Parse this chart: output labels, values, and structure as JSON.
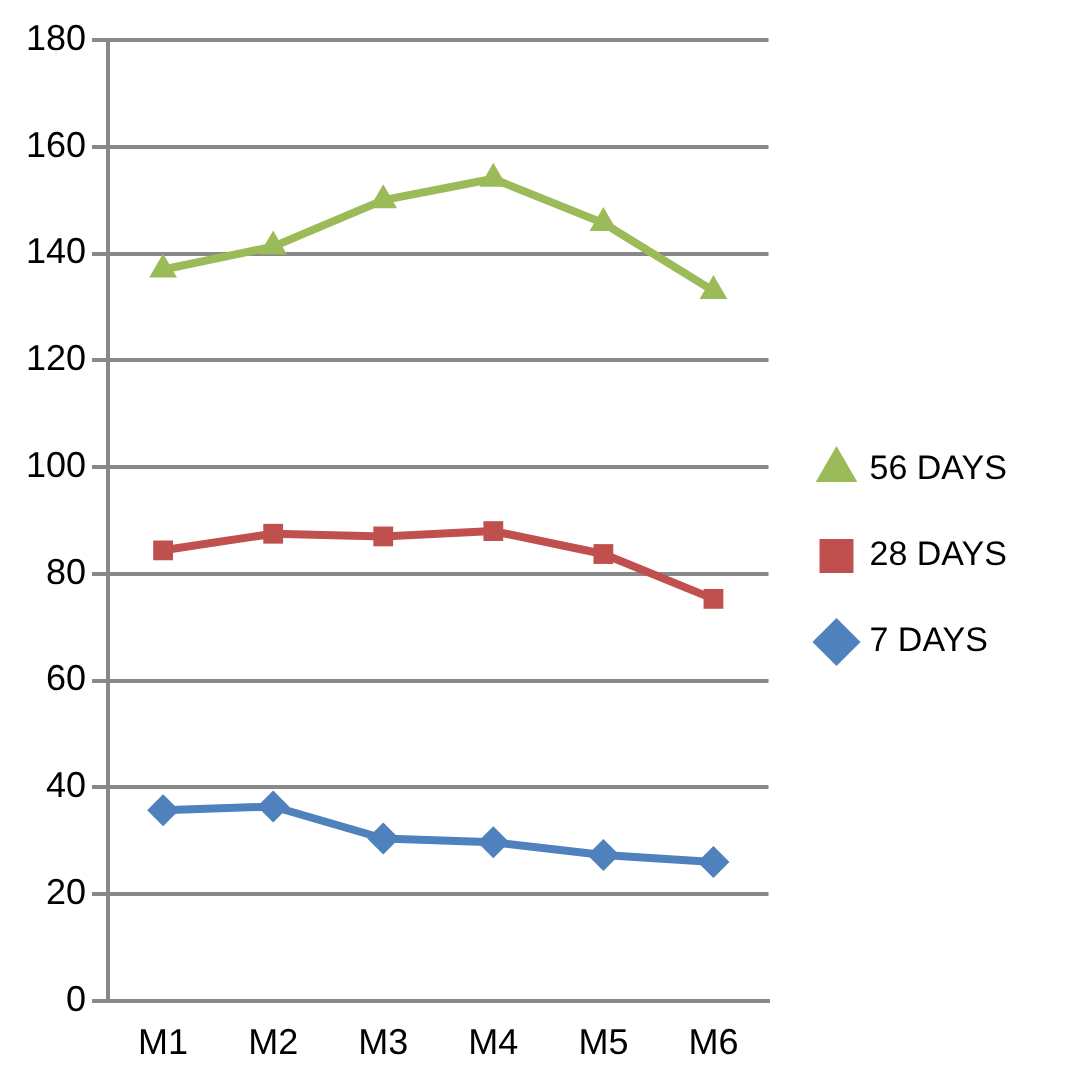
{
  "chart_data": {
    "type": "line",
    "categories": [
      "M1",
      "M2",
      "M3",
      "M4",
      "M5",
      "M6"
    ],
    "series": [
      {
        "name": "7 DAYS",
        "color": "#4f81bd",
        "marker": "diamond",
        "values": [
          35.7,
          36.4,
          30.4,
          29.7,
          27.3,
          26
        ]
      },
      {
        "name": "28 DAYS",
        "color": "#c0504d",
        "marker": "square",
        "values": [
          84.4,
          87.5,
          87,
          88,
          83.7,
          75.3
        ]
      },
      {
        "name": "56 DAYS",
        "color": "#9bbb59",
        "marker": "triangle",
        "values": [
          137,
          141.3,
          150,
          154,
          145.7,
          133
        ]
      }
    ],
    "ylim": [
      0,
      180
    ],
    "yticks": [
      0,
      20,
      40,
      60,
      80,
      100,
      120,
      140,
      160,
      180
    ],
    "grid": "y",
    "legend": "right",
    "line_style": "solid"
  }
}
